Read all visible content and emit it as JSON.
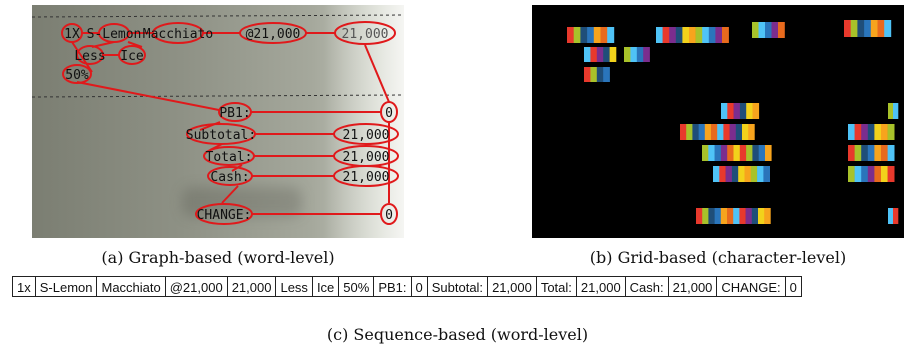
{
  "figures": {
    "graph": {
      "caption": "(a) Graph-based (word-level)",
      "tokens": [
        "1X",
        "S-Lemon",
        "Macchiato",
        "@21,000",
        "21,000",
        "Less",
        "Ice",
        "50%",
        "PB1:",
        "0",
        "Subtotal:",
        "21,000",
        "Total:",
        "21,000",
        "Cash:",
        "21,000",
        "CHANGE:",
        "0"
      ]
    },
    "grid": {
      "caption": "(b) Grid-based (character-level)",
      "colors": [
        "#e8392c",
        "#1f4e79",
        "#f7a41d",
        "#4fc3f7",
        "#7b2d8e",
        "#f2d21b",
        "#a8c22a",
        "#2a75bb",
        "#e86a1d"
      ]
    },
    "sequence": {
      "caption": "(c) Sequence-based (word-level)",
      "tokens": [
        "1x",
        "S-Lemon",
        "Macchiato",
        "@21,000",
        "21,000",
        "Less",
        "Ice",
        "50%",
        "PB1:",
        "0",
        "Subtotal:",
        "21,000",
        "Total:",
        "21,000",
        "Cash:",
        "21,000",
        "CHANGE:",
        "0"
      ]
    }
  }
}
